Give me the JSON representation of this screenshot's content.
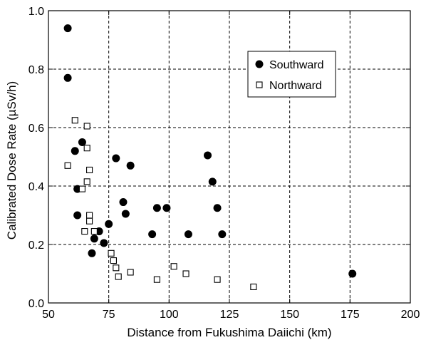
{
  "chart_data": {
    "type": "scatter",
    "title": "",
    "xlabel": "Distance from Fukushima Daiichi  (km)",
    "ylabel": "Calibrated Dose Rate  (µSv/h)",
    "xlim": [
      50,
      200
    ],
    "ylim": [
      0.0,
      1.0
    ],
    "xticks": [
      "50",
      "75",
      "100",
      "125",
      "150",
      "175",
      "200"
    ],
    "yticks": [
      "0.0",
      "0.2",
      "0.4",
      "0.6",
      "0.8",
      "1.0"
    ],
    "grid": true,
    "legend_position": "top-right",
    "series": [
      {
        "name": "Southward",
        "marker": "filled-circle",
        "color": "#000000",
        "points": [
          {
            "x": 58,
            "y": 0.94
          },
          {
            "x": 58,
            "y": 0.77
          },
          {
            "x": 61,
            "y": 0.52
          },
          {
            "x": 64,
            "y": 0.55
          },
          {
            "x": 62,
            "y": 0.39
          },
          {
            "x": 62,
            "y": 0.3
          },
          {
            "x": 68,
            "y": 0.17
          },
          {
            "x": 69,
            "y": 0.22
          },
          {
            "x": 71,
            "y": 0.245
          },
          {
            "x": 73,
            "y": 0.205
          },
          {
            "x": 75,
            "y": 0.27
          },
          {
            "x": 78,
            "y": 0.495
          },
          {
            "x": 81,
            "y": 0.345
          },
          {
            "x": 82,
            "y": 0.305
          },
          {
            "x": 84,
            "y": 0.47
          },
          {
            "x": 93,
            "y": 0.235
          },
          {
            "x": 95,
            "y": 0.325
          },
          {
            "x": 99,
            "y": 0.325
          },
          {
            "x": 108,
            "y": 0.235
          },
          {
            "x": 116,
            "y": 0.505
          },
          {
            "x": 118,
            "y": 0.415
          },
          {
            "x": 120,
            "y": 0.325
          },
          {
            "x": 122,
            "y": 0.235
          },
          {
            "x": 176,
            "y": 0.1
          }
        ]
      },
      {
        "name": "Northward",
        "marker": "open-square",
        "color": "#000000",
        "points": [
          {
            "x": 61,
            "y": 0.625
          },
          {
            "x": 58,
            "y": 0.47
          },
          {
            "x": 66,
            "y": 0.605
          },
          {
            "x": 66,
            "y": 0.53
          },
          {
            "x": 67,
            "y": 0.455
          },
          {
            "x": 66,
            "y": 0.415
          },
          {
            "x": 64,
            "y": 0.39
          },
          {
            "x": 65,
            "y": 0.245
          },
          {
            "x": 67,
            "y": 0.3
          },
          {
            "x": 67,
            "y": 0.28
          },
          {
            "x": 69,
            "y": 0.245
          },
          {
            "x": 76,
            "y": 0.17
          },
          {
            "x": 77,
            "y": 0.145
          },
          {
            "x": 78,
            "y": 0.12
          },
          {
            "x": 79,
            "y": 0.09
          },
          {
            "x": 84,
            "y": 0.105
          },
          {
            "x": 95,
            "y": 0.08
          },
          {
            "x": 102,
            "y": 0.125
          },
          {
            "x": 107,
            "y": 0.1
          },
          {
            "x": 120,
            "y": 0.08
          },
          {
            "x": 135,
            "y": 0.055
          }
        ]
      }
    ]
  }
}
